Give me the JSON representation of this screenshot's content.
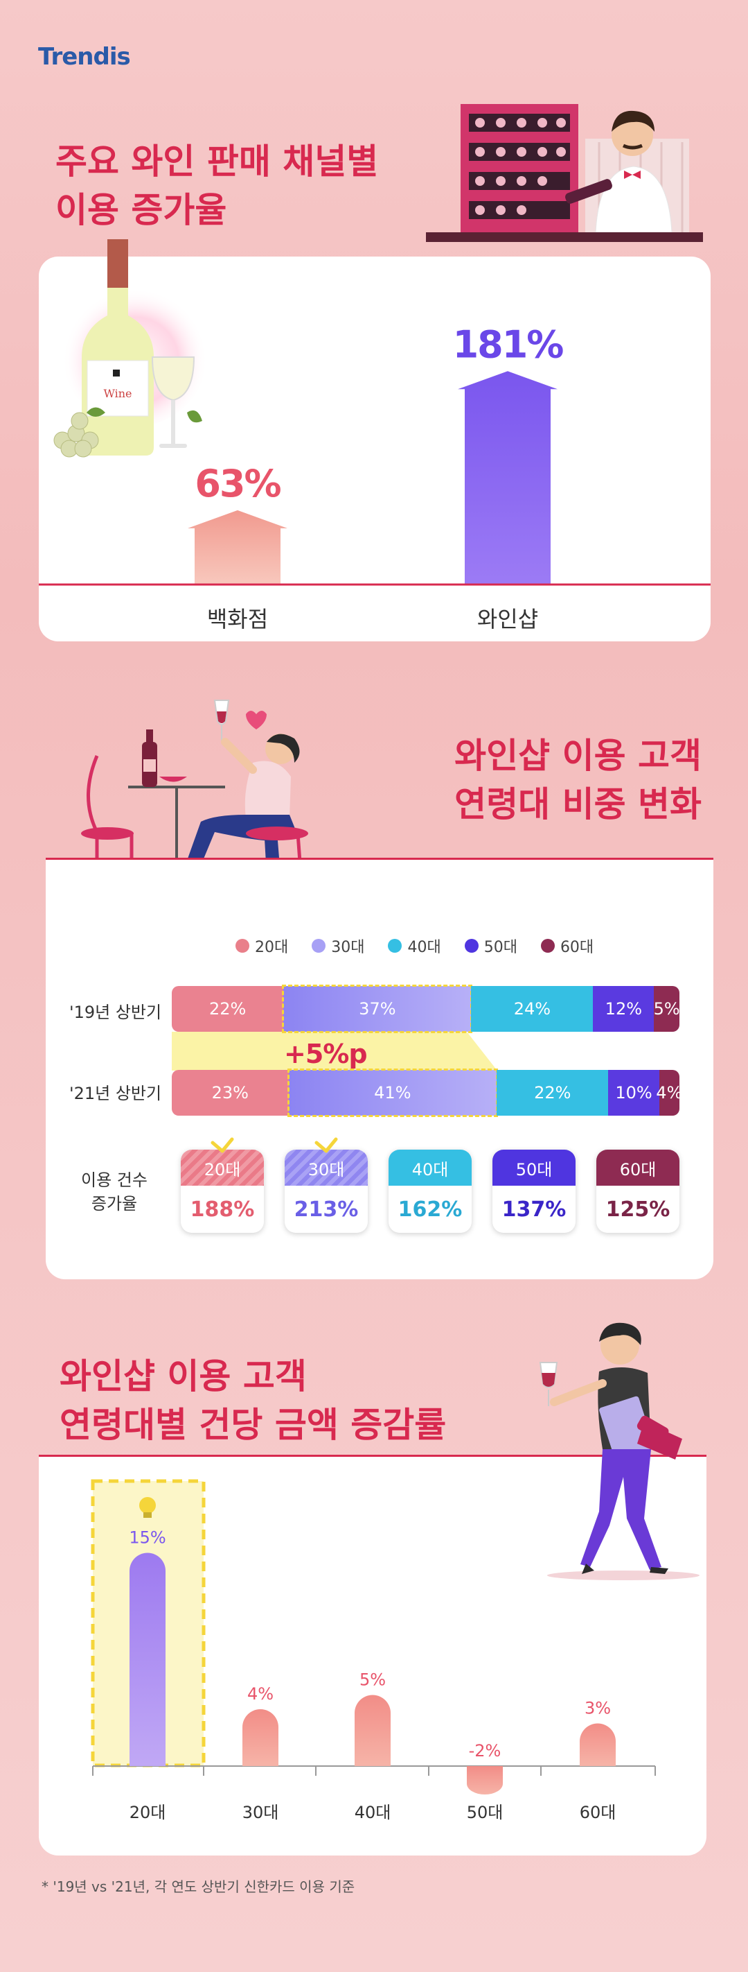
{
  "brand": {
    "logo_text": "Trendis"
  },
  "section1": {
    "title_line1": "주요 와인 판매 채널별",
    "title_line2": "이용 증가율",
    "bottle_label": "Wine"
  },
  "section2": {
    "title_line1": "와인샵 이용 고객",
    "title_line2": "연령대 비중 변화",
    "change_label": "+5%p",
    "growth_label_line1": "이용 건수",
    "growth_label_line2": "증가율"
  },
  "section3": {
    "title_line1": "와인샵 이용 고객",
    "title_line2": "연령대별 건당 금액 증감률"
  },
  "footnote": "* '19년 vs '21년, 각 연도 상반기 신한카드 이용 기준",
  "colors": {
    "title": "#d8294f",
    "age20": "#e97f8a",
    "age30": "#8f86f0",
    "age40": "#35bfe3",
    "age50": "#4f35e0",
    "age60": "#8e2b52",
    "highlight": "#f5d53a"
  },
  "chart_data": [
    {
      "type": "bar",
      "categories": [
        "백화점",
        "와인샵"
      ],
      "values": [
        63,
        181
      ],
      "value_labels": [
        "63%",
        "181%"
      ],
      "ylim": [
        0,
        200
      ]
    },
    {
      "type": "bar",
      "stacked": true,
      "orientation": "horizontal",
      "categories": [
        "'19년 상반기",
        "'21년 상반기"
      ],
      "legend": [
        "20대",
        "30대",
        "40대",
        "50대",
        "60대"
      ],
      "legend_placement": "top",
      "series": [
        {
          "name": "20대",
          "values": [
            22,
            23
          ]
        },
        {
          "name": "30대",
          "values": [
            37,
            41
          ]
        },
        {
          "name": "40대",
          "values": [
            24,
            22
          ]
        },
        {
          "name": "50대",
          "values": [
            12,
            10
          ]
        },
        {
          "name": "60대",
          "values": [
            5,
            4
          ]
        }
      ]
    },
    {
      "type": "table",
      "columns": [
        "20대",
        "30대",
        "40대",
        "50대",
        "60대"
      ],
      "values": [
        188,
        213,
        162,
        137,
        125
      ],
      "value_labels": [
        "188%",
        "213%",
        "162%",
        "137%",
        "125%"
      ]
    },
    {
      "type": "bar",
      "categories": [
        "20대",
        "30대",
        "40대",
        "50대",
        "60대"
      ],
      "values": [
        15,
        4,
        5,
        -2,
        3
      ],
      "value_labels": [
        "15%",
        "4%",
        "5%",
        "-2%",
        "3%"
      ],
      "ylim": [
        -3,
        16
      ]
    }
  ]
}
